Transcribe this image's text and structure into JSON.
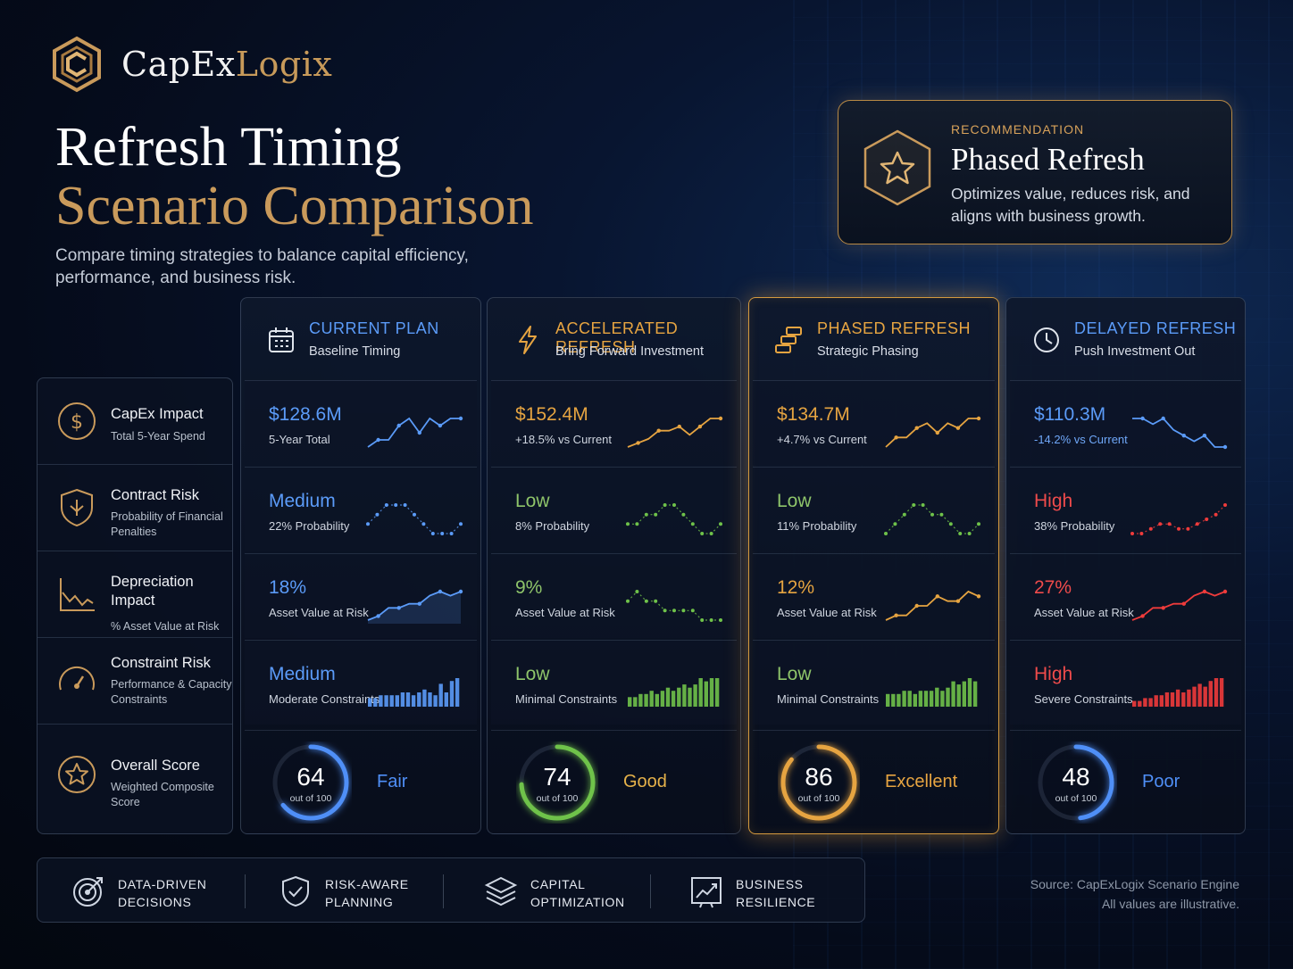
{
  "brand": {
    "name_main": "CapEx",
    "name_accent": "Logix"
  },
  "header": {
    "title_line1": "Refresh Timing",
    "title_line2": "Scenario Comparison",
    "subtitle": "Compare timing strategies to balance capital efficiency, performance, and business risk."
  },
  "recommendation": {
    "kicker": "RECOMMENDATION",
    "title": "Phased Refresh",
    "description": "Optimizes value, reduces risk, and aligns with business growth."
  },
  "metrics": [
    {
      "title": "CapEx Impact",
      "sub": "Total 5-Year Spend",
      "icon": "dollar-icon"
    },
    {
      "title": "Contract Risk",
      "sub": "Probability of Financial Penalties",
      "icon": "shield-icon"
    },
    {
      "title": "Depreciation Impact",
      "sub": "% Asset Value at Risk",
      "icon": "chart-decline-icon"
    },
    {
      "title": "Constraint Risk",
      "sub": "Performance & Capacity Constraints",
      "icon": "gauge-icon"
    },
    {
      "title": "Overall Score",
      "sub": "Weighted Composite Score",
      "icon": "star-icon"
    }
  ],
  "scenarios": [
    {
      "name": "CURRENT PLAN",
      "tagline": "Baseline Timing",
      "icon": "calendar-icon",
      "color": "#4f8ff7",
      "name_color": "#5b9bf8",
      "cells": [
        {
          "value": "$128.6M",
          "sub": "5-Year Total",
          "spark": "line",
          "values": [
            2,
            3,
            3,
            5,
            6,
            4,
            6,
            5,
            6,
            6
          ]
        },
        {
          "value": "Medium",
          "sub": "22% Probability",
          "spark": "dots",
          "values": [
            3,
            4,
            5,
            5,
            5,
            4,
            3,
            2,
            2,
            2,
            3
          ]
        },
        {
          "value": "18%",
          "sub": "Asset Value at Risk",
          "spark": "area",
          "values": [
            1,
            2,
            4,
            4,
            5,
            5,
            7,
            8,
            7,
            8
          ]
        },
        {
          "value": "Medium",
          "sub": "Moderate Constraints",
          "spark": "bars",
          "values": [
            3,
            3,
            4,
            4,
            4,
            4,
            5,
            5,
            4,
            5,
            6,
            5,
            4,
            8,
            5,
            9,
            10
          ]
        }
      ],
      "score": 64,
      "score_label": "out of 100",
      "rating": "Fair",
      "rating_color": "#4f8ff7"
    },
    {
      "name": "ACCELERATED REFRESH",
      "tagline": "Bring Forward Investment",
      "icon": "lightning-icon",
      "color": "#e3a13e",
      "name_color": "#e6a441",
      "cells": [
        {
          "value": "$152.4M",
          "sub": "+18.5% vs Current",
          "spark": "line",
          "values": [
            1,
            2,
            3,
            5,
            5,
            6,
            4,
            6,
            8,
            8
          ]
        },
        {
          "value": "Low",
          "sub": "8% Probability",
          "spark": "dots-green",
          "values": [
            3,
            3,
            4,
            4,
            5,
            5,
            4,
            3,
            2,
            2,
            3
          ]
        },
        {
          "value": "9%",
          "sub": "Asset Value at Risk",
          "spark": "dots-green",
          "values": [
            3,
            4,
            3,
            3,
            2,
            2,
            2,
            2,
            1,
            1,
            1
          ]
        },
        {
          "value": "Low",
          "sub": "Minimal Constraints",
          "spark": "bars-green",
          "values": [
            3,
            3,
            4,
            4,
            5,
            4,
            5,
            6,
            5,
            6,
            7,
            6,
            7,
            9,
            8,
            9,
            9
          ]
        }
      ],
      "score": 74,
      "score_label": "out of 100",
      "rating": "Good",
      "rating_color": "#e6b24a"
    },
    {
      "name": "PHASED REFRESH",
      "tagline": "Strategic Phasing",
      "icon": "phased-blocks-icon",
      "color": "#e3a13e",
      "name_color": "#e6a441",
      "cells": [
        {
          "value": "$134.7M",
          "sub": "+4.7% vs Current",
          "spark": "line",
          "values": [
            1,
            3,
            3,
            5,
            6,
            4,
            6,
            5,
            7,
            7
          ]
        },
        {
          "value": "Low",
          "sub": "11% Probability",
          "spark": "dots-green",
          "values": [
            2,
            3,
            4,
            5,
            5,
            4,
            4,
            3,
            2,
            2,
            3
          ]
        },
        {
          "value": "12%",
          "sub": "Asset Value at Risk",
          "spark": "line",
          "values": [
            1,
            2,
            2,
            4,
            4,
            6,
            5,
            5,
            7,
            6
          ]
        },
        {
          "value": "Low",
          "sub": "Minimal Constraints",
          "spark": "bars-green",
          "values": [
            4,
            4,
            4,
            5,
            5,
            4,
            5,
            5,
            5,
            6,
            5,
            6,
            8,
            7,
            8,
            9,
            8
          ]
        }
      ],
      "score": 86,
      "score_label": "out of 100",
      "rating": "Excellent",
      "rating_color": "#e6a441"
    },
    {
      "name": "DELAYED REFRESH",
      "tagline": "Push Investment Out",
      "icon": "clock-icon",
      "color": "#4f8ff7",
      "name_color": "#5b9bf8",
      "cells": [
        {
          "value": "$110.3M",
          "sub": "-14.2% vs Current",
          "spark": "line",
          "values": [
            8,
            8,
            7,
            8,
            6,
            5,
            4,
            5,
            3,
            3
          ]
        },
        {
          "value": "High",
          "sub": "38% Probability",
          "spark": "dots-red",
          "values": [
            2,
            2,
            3,
            4,
            4,
            3,
            3,
            4,
            5,
            6,
            8
          ]
        },
        {
          "value": "27%",
          "sub": "Asset Value at Risk",
          "spark": "line-red",
          "values": [
            1,
            2,
            4,
            4,
            5,
            5,
            7,
            8,
            7,
            8
          ]
        },
        {
          "value": "High",
          "sub": "Severe Constraints",
          "spark": "bars-red",
          "values": [
            2,
            2,
            3,
            3,
            4,
            4,
            5,
            5,
            6,
            5,
            6,
            7,
            8,
            7,
            9,
            10,
            10
          ]
        }
      ],
      "score": 48,
      "score_label": "out of 100",
      "rating": "Poor",
      "rating_color": "#4f8ff7"
    }
  ],
  "value_colors": [
    "#5b9bf8",
    "#e6a441",
    "#e6a441",
    "#5b9bf8"
  ],
  "risk_value_colors": {
    "Medium": "#5b9bf8",
    "Low": "#8ec46a",
    "High": "#ef4b4b",
    "18%": "#5b9bf8",
    "9%": "#8ec46a",
    "12%": "#e6a441",
    "27%": "#ef4b4b"
  },
  "pillars": [
    {
      "label": "DATA-DRIVEN\nDECISIONS",
      "icon": "target-icon"
    },
    {
      "label": "RISK-AWARE\nPLANNING",
      "icon": "shield-check-icon"
    },
    {
      "label": "CAPITAL\nOPTIMIZATION",
      "icon": "layers-icon"
    },
    {
      "label": "BUSINESS\nRESILIENCE",
      "icon": "growth-chart-icon"
    }
  ],
  "source": {
    "line1": "Source: CapExLogix Scenario Engine",
    "line2": "All values are illustrative."
  },
  "accent": "#c99a5b"
}
